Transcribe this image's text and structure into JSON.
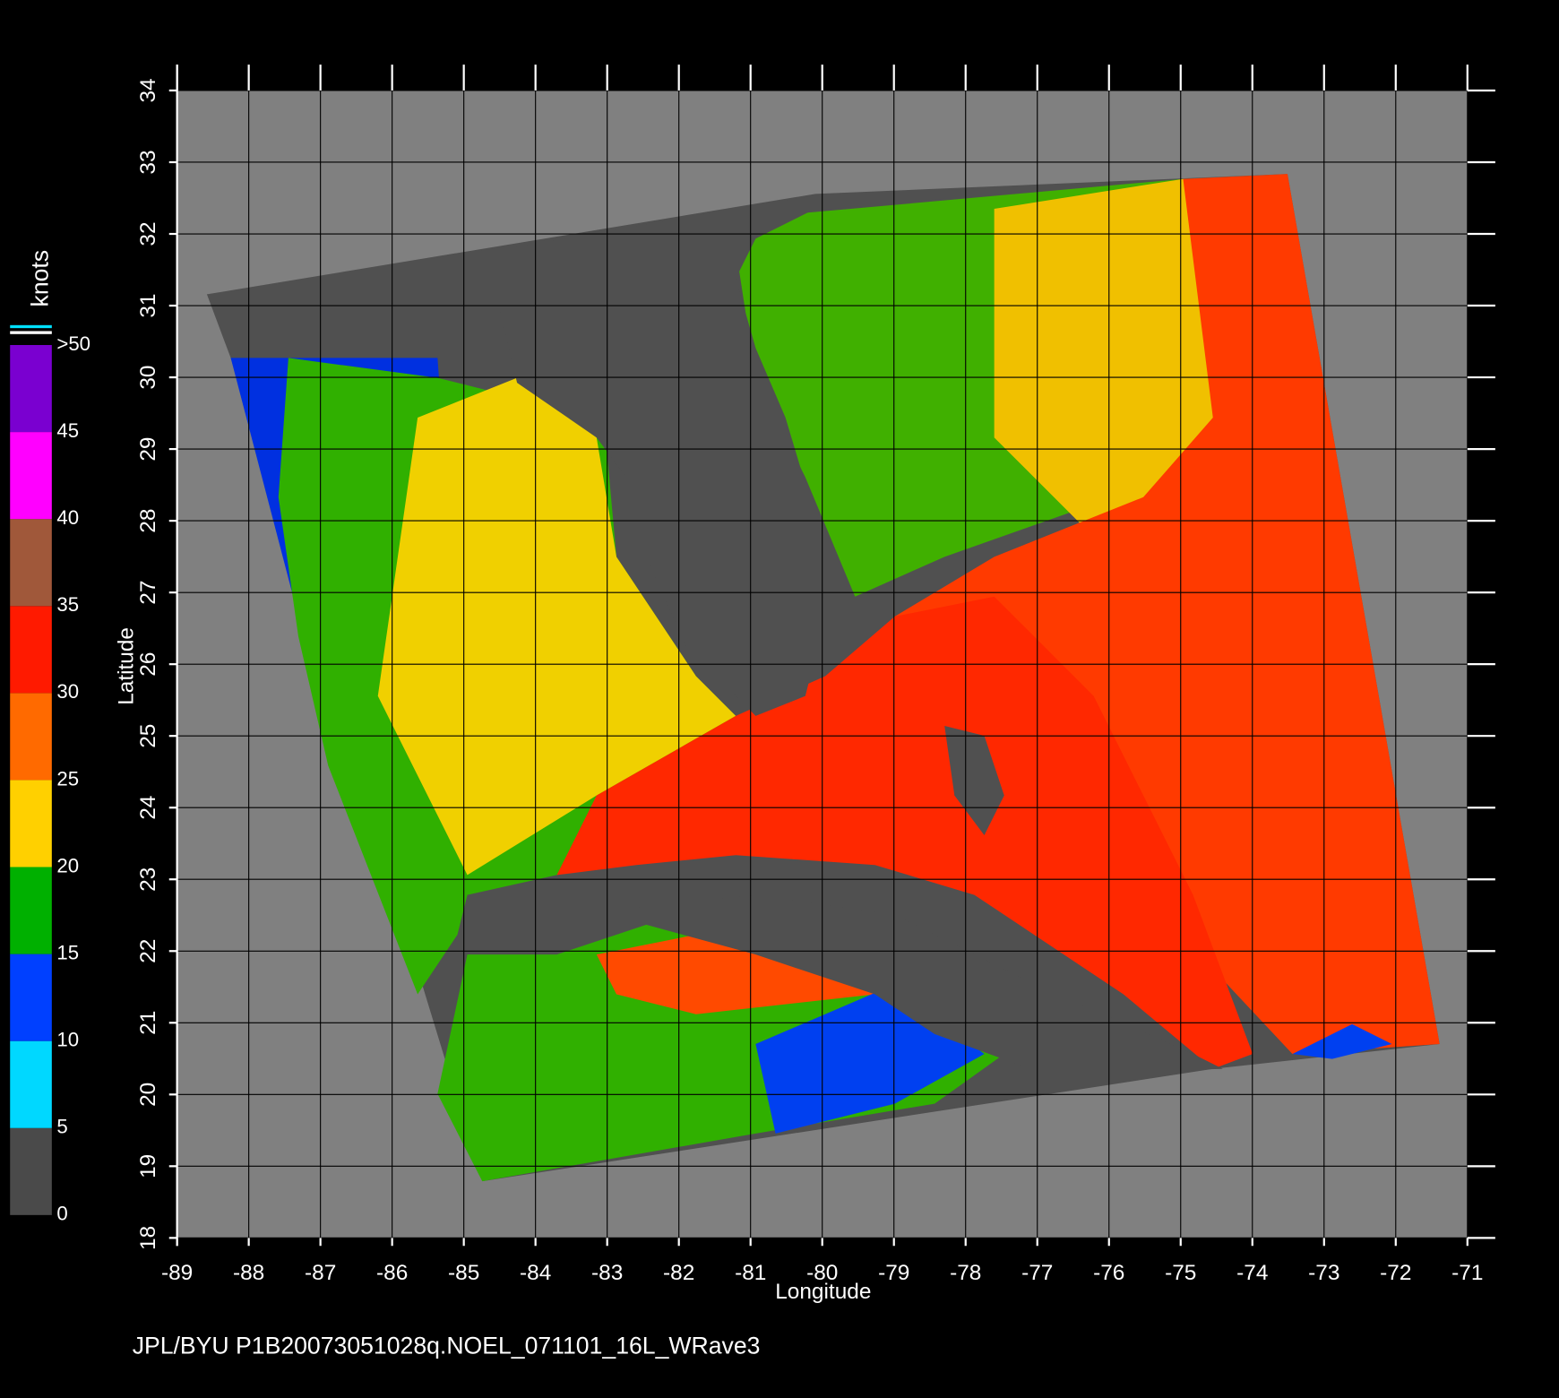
{
  "chart_data": {
    "type": "map",
    "xlabel": "Longitude",
    "ylabel": "Latitude",
    "xlim": [
      -89,
      -71
    ],
    "ylim": [
      18,
      34
    ],
    "xticks": [
      -89,
      -88,
      -87,
      -86,
      -85,
      -84,
      -83,
      -82,
      -81,
      -80,
      -79,
      -78,
      -77,
      -76,
      -75,
      -74,
      -73,
      -72,
      -71
    ],
    "yticks": [
      18,
      19,
      20,
      21,
      22,
      23,
      24,
      25,
      26,
      27,
      28,
      29,
      30,
      31,
      32,
      33,
      34
    ],
    "grid": true,
    "colorbar": {
      "label": "knots",
      "ticks": [
        0,
        5,
        10,
        15,
        20,
        25,
        30,
        35,
        40,
        45,
        {
          "value": 50,
          "label": ">50"
        }
      ],
      "colors": [
        "#4a4a4a",
        "#00d8ff",
        "#0040ff",
        "#00b000",
        "#ffd000",
        "#ff6a00",
        "#ff1a00",
        "#a0583a",
        "#ff00ff",
        "#7a00d0"
      ]
    },
    "footer": "JPL/BYU  P1B20073051028q.NOEL_071101_16L_WRave3"
  }
}
